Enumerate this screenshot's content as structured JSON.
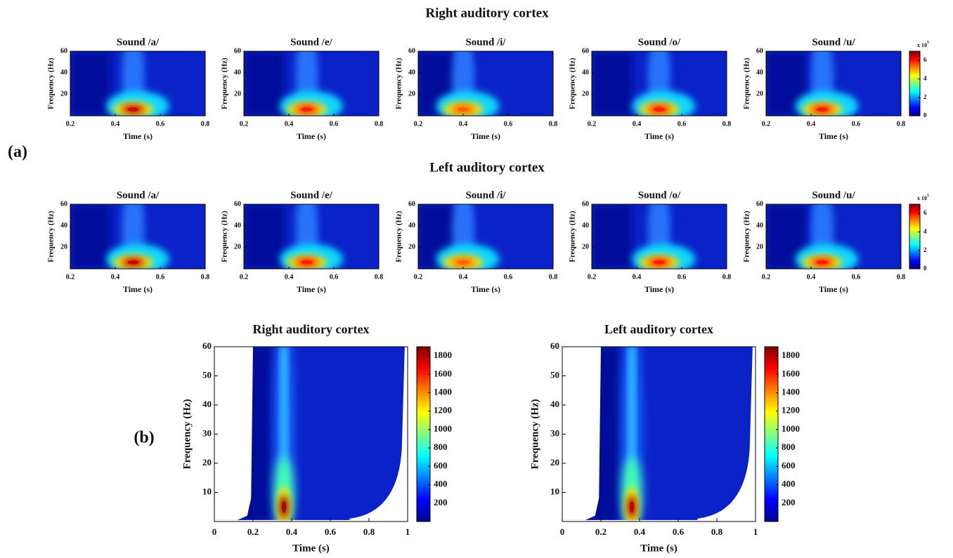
{
  "figure": {
    "panel_a_label": "(a)",
    "panel_b_label": "(b)",
    "row_titles": [
      "Right auditory cortex",
      "Left auditory cortex"
    ]
  },
  "chart_data": [
    {
      "type": "heatmap",
      "title": "Sound /a/",
      "xlabel": "Time (s)",
      "ylabel": "Frequency (Hz)",
      "xlim": [
        0.2,
        0.8
      ],
      "xticks": [
        0.2,
        0.4,
        0.6,
        0.8
      ],
      "ylim": [
        0,
        60
      ],
      "yticks": [
        20,
        40,
        60
      ],
      "peak": {
        "x": 0.48,
        "y": 6,
        "value": 6.5
      }
    },
    {
      "type": "heatmap",
      "title": "Sound /e/",
      "xlabel": "Time (s)",
      "ylabel": "Frequency (Hz)",
      "xlim": [
        0.2,
        0.8
      ],
      "xticks": [
        0.2,
        0.4,
        0.6,
        0.8
      ],
      "ylim": [
        0,
        60
      ],
      "yticks": [
        20,
        40,
        60
      ],
      "peak": {
        "x": 0.48,
        "y": 6,
        "value": 6
      }
    },
    {
      "type": "heatmap",
      "title": "Sound /i/",
      "xlabel": "Time (s)",
      "ylabel": "Frequency (Hz)",
      "xlim": [
        0.2,
        0.8
      ],
      "xticks": [
        0.2,
        0.4,
        0.6,
        0.8
      ],
      "ylim": [
        0,
        60
      ],
      "yticks": [
        20,
        40,
        60
      ],
      "peak": {
        "x": 0.4,
        "y": 6,
        "value": 5.5
      }
    },
    {
      "type": "heatmap",
      "title": "Sound /o/",
      "xlabel": "Time (s)",
      "ylabel": "Frequency (Hz)",
      "xlim": [
        0.2,
        0.8
      ],
      "xticks": [
        0.2,
        0.4,
        0.6,
        0.8
      ],
      "ylim": [
        0,
        60
      ],
      "yticks": [
        20,
        40,
        60
      ],
      "peak": {
        "x": 0.5,
        "y": 6,
        "value": 6
      }
    },
    {
      "type": "heatmap",
      "title": "Sound /u/",
      "xlabel": "Time (s)",
      "ylabel": "Frequency (Hz)",
      "xlim": [
        0.2,
        0.8
      ],
      "xticks": [
        0.2,
        0.4,
        0.6,
        0.8
      ],
      "ylim": [
        0,
        60
      ],
      "yticks": [
        20,
        40,
        60
      ],
      "peak": {
        "x": 0.45,
        "y": 6,
        "value": 6
      },
      "colorbar": {
        "lim": [
          0,
          7
        ],
        "ticks": [
          0,
          2,
          4,
          6
        ],
        "multiplier": "x 10",
        "exponent": "5"
      }
    },
    {
      "type": "heatmap",
      "title": "Sound /a/",
      "xlabel": "Time (s)",
      "ylabel": "Frequency (Hz)",
      "xlim": [
        0.2,
        0.8
      ],
      "xticks": [
        0.2,
        0.4,
        0.6,
        0.8
      ],
      "ylim": [
        0,
        60
      ],
      "yticks": [
        20,
        40,
        60
      ],
      "peak": {
        "x": 0.48,
        "y": 6,
        "value": 6.5
      }
    },
    {
      "type": "heatmap",
      "title": "Sound /e/",
      "xlabel": "Time (s)",
      "ylabel": "Frequency (Hz)",
      "xlim": [
        0.2,
        0.8
      ],
      "xticks": [
        0.2,
        0.4,
        0.6,
        0.8
      ],
      "ylim": [
        0,
        60
      ],
      "yticks": [
        20,
        40,
        60
      ],
      "peak": {
        "x": 0.48,
        "y": 6,
        "value": 6
      }
    },
    {
      "type": "heatmap",
      "title": "Sound /i/",
      "xlabel": "Time (s)",
      "ylabel": "Frequency (Hz)",
      "xlim": [
        0.2,
        0.8
      ],
      "xticks": [
        0.2,
        0.4,
        0.6,
        0.8
      ],
      "ylim": [
        0,
        60
      ],
      "yticks": [
        20,
        40,
        60
      ],
      "peak": {
        "x": 0.4,
        "y": 6,
        "value": 5.5
      }
    },
    {
      "type": "heatmap",
      "title": "Sound /o/",
      "xlabel": "Time (s)",
      "ylabel": "Frequency (Hz)",
      "xlim": [
        0.2,
        0.8
      ],
      "xticks": [
        0.2,
        0.4,
        0.6,
        0.8
      ],
      "ylim": [
        0,
        60
      ],
      "yticks": [
        20,
        40,
        60
      ],
      "peak": {
        "x": 0.5,
        "y": 6,
        "value": 6
      }
    },
    {
      "type": "heatmap",
      "title": "Sound /u/",
      "xlabel": "Time (s)",
      "ylabel": "Frequency (Hz)",
      "xlim": [
        0.2,
        0.8
      ],
      "xticks": [
        0.2,
        0.4,
        0.6,
        0.8
      ],
      "ylim": [
        0,
        60
      ],
      "yticks": [
        20,
        40,
        60
      ],
      "peak": {
        "x": 0.45,
        "y": 6,
        "value": 6
      },
      "colorbar": {
        "lim": [
          0,
          7
        ],
        "ticks": [
          0,
          2,
          4,
          6
        ],
        "multiplier": "x 10",
        "exponent": "5"
      }
    },
    {
      "type": "heatmap",
      "title": "Right auditory cortex",
      "xlabel": "Time (s)",
      "ylabel": "Frequency (Hz)",
      "xlim": [
        0,
        1
      ],
      "xticks": [
        0,
        0.2,
        0.4,
        0.6,
        0.8,
        1
      ],
      "ylim": [
        0,
        60
      ],
      "yticks": [
        10,
        20,
        30,
        40,
        50,
        60
      ],
      "peak": {
        "x": 0.36,
        "y": 5,
        "value": 1850
      },
      "colorbar": {
        "lim": [
          0,
          1900
        ],
        "ticks": [
          200,
          400,
          600,
          800,
          1000,
          1200,
          1400,
          1600,
          1800
        ]
      }
    },
    {
      "type": "heatmap",
      "title": "Left auditory cortex",
      "xlabel": "Time (s)",
      "ylabel": "Frequency (Hz)",
      "xlim": [
        0,
        1
      ],
      "xticks": [
        0,
        0.2,
        0.4,
        0.6,
        0.8,
        1
      ],
      "ylim": [
        0,
        60
      ],
      "yticks": [
        10,
        20,
        30,
        40,
        50,
        60
      ],
      "peak": {
        "x": 0.36,
        "y": 5,
        "value": 1800
      },
      "colorbar": {
        "lim": [
          0,
          1900
        ],
        "ticks": [
          200,
          400,
          600,
          800,
          1000,
          1200,
          1400,
          1600,
          1800
        ]
      }
    }
  ]
}
